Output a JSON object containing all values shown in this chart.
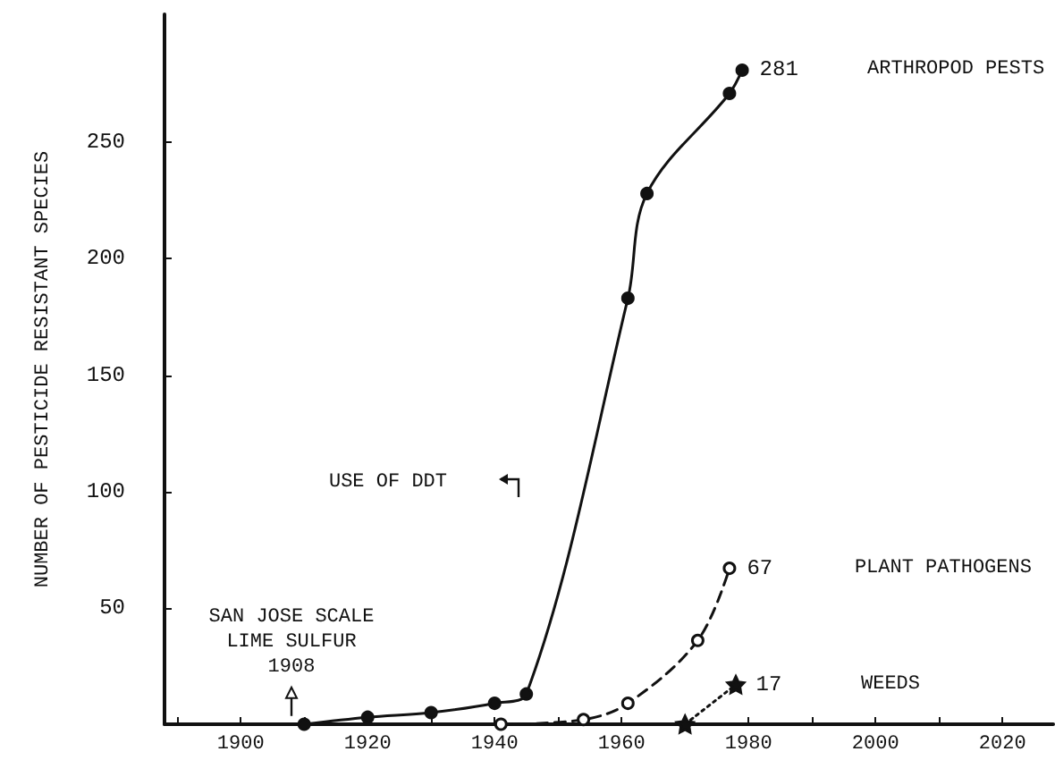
{
  "chart_data": {
    "type": "line",
    "ylabel": "NUMBER OF PESTICIDE RESISTANT SPECIES",
    "xlim": [
      1888,
      2028
    ],
    "ylim": [
      0,
      305
    ],
    "xticks": [
      {
        "value": 1890,
        "label": null
      },
      1900,
      {
        "value": 1910,
        "label": null
      },
      1920,
      {
        "value": 1930,
        "label": null
      },
      1940,
      {
        "value": 1950,
        "label": null
      },
      1960,
      {
        "value": 1970,
        "label": null
      },
      1980,
      {
        "value": 1990,
        "label": null
      },
      2000,
      {
        "value": 2010,
        "label": null
      },
      2020
    ],
    "yticks": [
      50,
      100,
      150,
      200,
      250
    ],
    "grid": false,
    "legend": false,
    "series": [
      {
        "name": "ARTHROPOD PESTS",
        "color": "#111111",
        "marker": "circle",
        "line_style": "solid",
        "x": [
          1910,
          1920,
          1930,
          1940,
          1945,
          1961,
          1964,
          1977,
          1979
        ],
        "values": [
          0,
          3,
          5,
          9,
          13,
          183,
          228,
          271,
          281
        ],
        "value_labels": [
          null,
          null,
          null,
          null,
          null,
          null,
          null,
          null,
          "281"
        ]
      },
      {
        "name": "PLANT PATHOGENS",
        "color": "#111111",
        "marker": "circle",
        "line_style": "dashed",
        "x": [
          1941,
          1954,
          1961,
          1972,
          1977
        ],
        "values": [
          0,
          2,
          9,
          36,
          67
        ],
        "value_labels": [
          null,
          null,
          null,
          null,
          "67"
        ]
      },
      {
        "name": "WEEDS",
        "color": "#111111",
        "marker": "star",
        "line_style": "dotted",
        "x": [
          1970,
          1978
        ],
        "values": [
          0,
          17
        ],
        "value_labels": [
          null,
          "17"
        ]
      }
    ],
    "annotations": [
      {
        "text": "SAN JOSE SCALE\nLIME SULFUR\n1908",
        "x": 1908,
        "y": 2
      },
      "USE OF DDT"
    ]
  }
}
